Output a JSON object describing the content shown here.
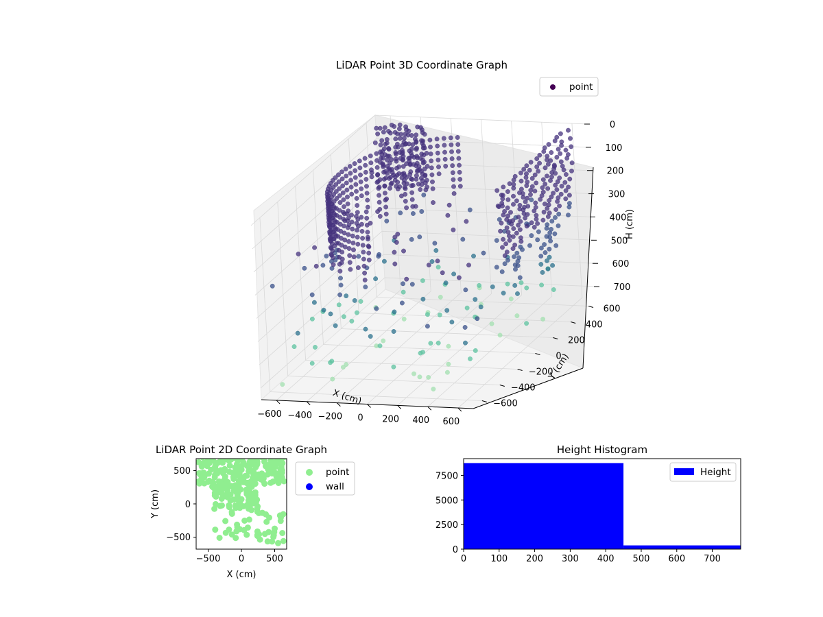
{
  "figure": {
    "scatter3d": {
      "title": "LiDAR Point 3D Coordinate Graph",
      "xlabel": "X (cm)",
      "ylabel": "Y (cm)",
      "zlabel": "H (cm)",
      "x_ticks": [
        "−600",
        "−400",
        "−200",
        "0",
        "200",
        "400",
        "600"
      ],
      "y_ticks": [
        "−600",
        "−400",
        "−200",
        "0",
        "200",
        "400",
        "600"
      ],
      "z_ticks": [
        "0",
        "100",
        "200",
        "300",
        "400",
        "500",
        "600",
        "700"
      ],
      "legend": [
        "point"
      ]
    },
    "scatter2d": {
      "title": "LiDAR Point 2D Coordinate Graph",
      "xlabel": "X (cm)",
      "ylabel": "Y (cm)",
      "x_ticks": [
        "−500",
        "0",
        "500"
      ],
      "y_ticks": [
        "500",
        "0",
        "−500"
      ],
      "legend": [
        "point",
        "wall"
      ]
    },
    "histogram": {
      "title": "Height Histogram",
      "x_ticks": [
        "0",
        "100",
        "200",
        "300",
        "400",
        "500",
        "600",
        "700"
      ],
      "y_ticks": [
        "0",
        "2500",
        "5000",
        "7500"
      ],
      "legend": [
        "Height"
      ]
    }
  },
  "chart_data": [
    {
      "type": "scatter",
      "title": "LiDAR Point 3D Coordinate Graph",
      "xlabel": "X (cm)",
      "ylabel": "Y (cm)",
      "zlabel": "H (cm)",
      "xlim": [
        -700,
        700
      ],
      "ylim": [
        -700,
        700
      ],
      "zlim": [
        0,
        750
      ],
      "z_inverted": true,
      "grid": true,
      "legend_position": "top-right",
      "colormap": "viridis",
      "series": [
        {
          "name": "point"
        }
      ]
    },
    {
      "type": "scatter",
      "title": "LiDAR Point 2D Coordinate Graph",
      "xlabel": "X (cm)",
      "ylabel": "Y (cm)",
      "xlim": [
        -680,
        680
      ],
      "ylim": [
        -680,
        680
      ],
      "legend_position": "outside right",
      "series": [
        {
          "name": "point",
          "color": "#90ee90"
        },
        {
          "name": "wall",
          "color": "#0000ff"
        }
      ]
    },
    {
      "type": "bar",
      "title": "Height Histogram",
      "xlim": [
        0,
        780
      ],
      "ylim": [
        0,
        9200
      ],
      "legend_position": "top-right",
      "series": [
        {
          "name": "Height",
          "color": "#0000ff"
        }
      ],
      "bins": [
        {
          "x0": 0,
          "x1": 450,
          "count": 8750
        },
        {
          "x0": 450,
          "x1": 780,
          "count": 380
        }
      ]
    }
  ]
}
